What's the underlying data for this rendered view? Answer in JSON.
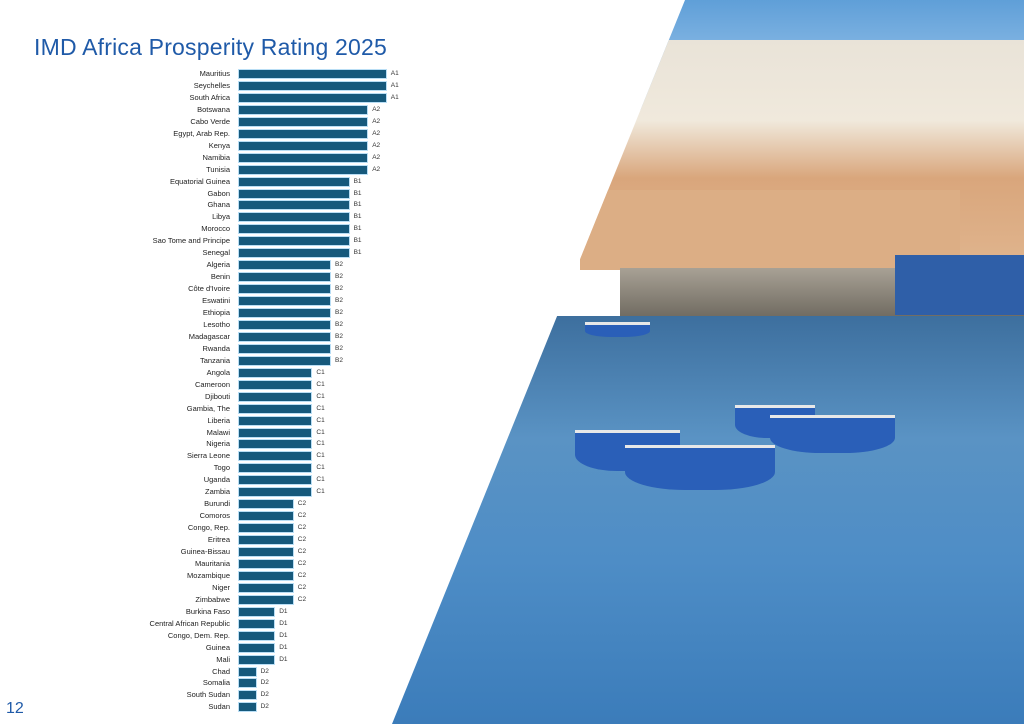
{
  "title": "IMD Africa Prosperity Rating 2025",
  "page_number": "12",
  "chart_data": {
    "type": "bar",
    "orientation": "horizontal",
    "title": "IMD Africa Prosperity Rating 2025",
    "rating_scale": {
      "A1": 8,
      "A2": 7,
      "B1": 6,
      "B2": 5,
      "C1": 4,
      "C2": 3,
      "D1": 2,
      "D2": 1
    },
    "categories": [
      "Mauritius",
      "Seychelles",
      "South Africa",
      "Botswana",
      "Cabo Verde",
      "Egypt, Arab Rep.",
      "Kenya",
      "Namibia",
      "Tunisia",
      "Equatorial Guinea",
      "Gabon",
      "Ghana",
      "Libya",
      "Morocco",
      "Sao Tome and Principe",
      "Senegal",
      "Algeria",
      "Benin",
      "Côte d'Ivoire",
      "Eswatini",
      "Ethiopia",
      "Lesotho",
      "Madagascar",
      "Rwanda",
      "Tanzania",
      "Angola",
      "Cameroon",
      "Djibouti",
      "Gambia, The",
      "Liberia",
      "Malawi",
      "Nigeria",
      "Sierra Leone",
      "Togo",
      "Uganda",
      "Zambia",
      "Burundi",
      "Comoros",
      "Congo, Rep.",
      "Eritrea",
      "Guinea-Bissau",
      "Mauritania",
      "Mozambique",
      "Niger",
      "Zimbabwe",
      "Burkina Faso",
      "Central African Republic",
      "Congo, Dem. Rep.",
      "Guinea",
      "Mali",
      "Chad",
      "Somalia",
      "South Sudan",
      "Sudan"
    ],
    "ratings": [
      "A1",
      "A1",
      "A1",
      "A2",
      "A2",
      "A2",
      "A2",
      "A2",
      "A2",
      "B1",
      "B1",
      "B1",
      "B1",
      "B1",
      "B1",
      "B1",
      "B2",
      "B2",
      "B2",
      "B2",
      "B2",
      "B2",
      "B2",
      "B2",
      "B2",
      "C1",
      "C1",
      "C1",
      "C1",
      "C1",
      "C1",
      "C1",
      "C1",
      "C1",
      "C1",
      "C1",
      "C2",
      "C2",
      "C2",
      "C2",
      "C2",
      "C2",
      "C2",
      "C2",
      "C2",
      "D1",
      "D1",
      "D1",
      "D1",
      "D1",
      "D2",
      "D2",
      "D2",
      "D2"
    ],
    "colors": {
      "bar": "#16597c",
      "outline": "#b9def5"
    }
  }
}
